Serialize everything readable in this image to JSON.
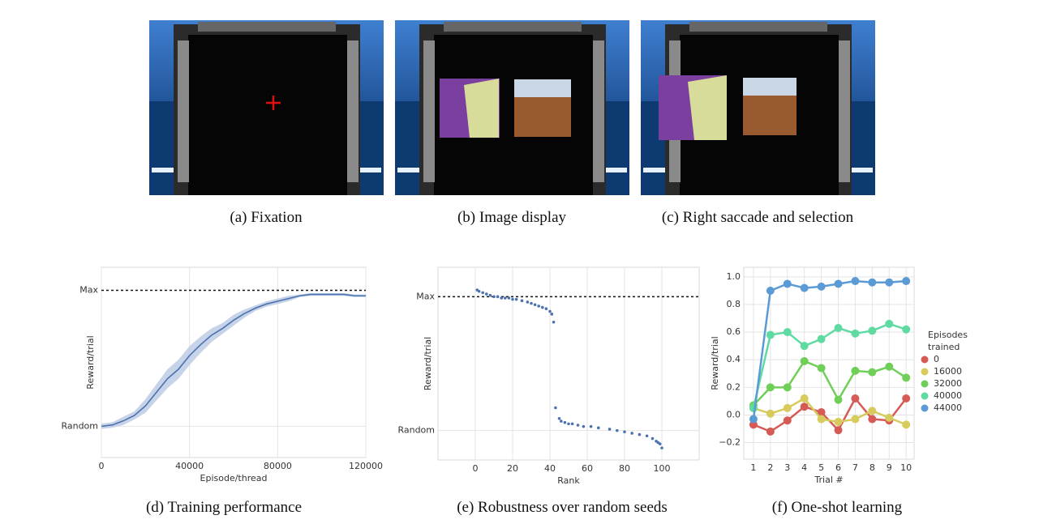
{
  "panels": [
    {
      "caption": "(a) Fixation"
    },
    {
      "caption": "(b) Image display"
    },
    {
      "caption": "(c) Right saccade and selection"
    }
  ],
  "chart_data": [
    {
      "type": "line",
      "caption": "(d) Training performance",
      "xlabel": "Episode/thread",
      "ylabel": "Reward/trial",
      "x": [
        0,
        5000,
        10000,
        15000,
        20000,
        25000,
        30000,
        35000,
        40000,
        45000,
        50000,
        55000,
        60000,
        65000,
        70000,
        75000,
        80000,
        85000,
        90000,
        95000,
        100000,
        105000,
        110000,
        115000,
        120000
      ],
      "series": [
        {
          "color": "#4c72b0",
          "values": [
            0.0,
            0.01,
            0.04,
            0.08,
            0.15,
            0.25,
            0.35,
            0.42,
            0.52,
            0.6,
            0.67,
            0.72,
            0.78,
            0.83,
            0.87,
            0.9,
            0.92,
            0.94,
            0.96,
            0.97,
            0.97,
            0.97,
            0.97,
            0.96,
            0.96
          ]
        }
      ],
      "band_low": [
        -0.02,
        -0.01,
        0.01,
        0.05,
        0.1,
        0.19,
        0.28,
        0.35,
        0.45,
        0.54,
        0.62,
        0.68,
        0.74,
        0.8,
        0.85,
        0.88,
        0.9,
        0.92,
        0.95,
        0.96,
        0.96,
        0.96,
        0.96,
        0.95,
        0.95
      ],
      "band_high": [
        0.02,
        0.03,
        0.07,
        0.11,
        0.2,
        0.31,
        0.42,
        0.49,
        0.59,
        0.66,
        0.72,
        0.76,
        0.82,
        0.86,
        0.89,
        0.92,
        0.94,
        0.96,
        0.97,
        0.98,
        0.98,
        0.98,
        0.98,
        0.97,
        0.97
      ],
      "band_color": "#b8c8e2",
      "xlim": [
        0,
        120000
      ],
      "xticks": [
        0,
        40000,
        80000,
        120000
      ],
      "ylim": [
        -0.23,
        1.17
      ],
      "yticks": [
        {
          "value": 0,
          "label": "Random"
        },
        {
          "value": 1,
          "label": "Max"
        }
      ],
      "grid": true,
      "dashed_top_tick": true
    },
    {
      "type": "scatter",
      "caption": "(e) Robustness over random seeds",
      "xlabel": "Rank",
      "ylabel": "Reward/trial",
      "color": "#4c72b0",
      "x": [
        1,
        2,
        4,
        6,
        8,
        10,
        12,
        14,
        16,
        18,
        20,
        22,
        25,
        28,
        30,
        32,
        34,
        36,
        38,
        40,
        41,
        42,
        43,
        45,
        46,
        48,
        50,
        52,
        55,
        58,
        62,
        66,
        72,
        76,
        80,
        84,
        88,
        92,
        95,
        97,
        98,
        99,
        100
      ],
      "values": [
        1.05,
        1.04,
        1.03,
        1.02,
        1.01,
        1.0,
        1.0,
        0.99,
        0.99,
        0.99,
        0.98,
        0.98,
        0.97,
        0.96,
        0.95,
        0.94,
        0.93,
        0.92,
        0.91,
        0.89,
        0.87,
        0.81,
        0.17,
        0.09,
        0.07,
        0.06,
        0.05,
        0.05,
        0.04,
        0.03,
        0.03,
        0.02,
        0.01,
        0.0,
        -0.01,
        -0.02,
        -0.03,
        -0.04,
        -0.06,
        -0.08,
        -0.09,
        -0.1,
        -0.13
      ],
      "xlim": [
        -20,
        120
      ],
      "xticks": [
        0,
        20,
        40,
        60,
        80,
        100
      ],
      "ylim": [
        -0.22,
        1.22
      ],
      "yticks": [
        {
          "value": 0,
          "label": "Random"
        },
        {
          "value": 1,
          "label": "Max"
        }
      ],
      "grid": true,
      "dashed_top_tick": true
    },
    {
      "type": "line",
      "caption": "(f) One-shot learning",
      "xlabel": "Trial #",
      "ylabel": "Reward/trial",
      "markers": true,
      "legend_title": "Episodes trained",
      "legend": "right",
      "x": [
        1,
        2,
        3,
        4,
        5,
        6,
        7,
        8,
        9,
        10
      ],
      "series": [
        {
          "name": "0",
          "color": "#d65a55",
          "values": [
            -0.07,
            -0.12,
            -0.04,
            0.06,
            0.02,
            -0.11,
            0.12,
            -0.03,
            -0.04,
            0.12
          ]
        },
        {
          "name": "16000",
          "color": "#d6cb5c",
          "values": [
            0.05,
            0.01,
            0.05,
            0.12,
            -0.03,
            -0.05,
            -0.03,
            0.03,
            -0.02,
            -0.07
          ]
        },
        {
          "name": "32000",
          "color": "#6fcf58",
          "values": [
            0.07,
            0.2,
            0.2,
            0.39,
            0.34,
            0.11,
            0.32,
            0.31,
            0.35,
            0.27
          ]
        },
        {
          "name": "40000",
          "color": "#5fdba2",
          "values": [
            0.05,
            0.58,
            0.6,
            0.5,
            0.55,
            0.63,
            0.59,
            0.61,
            0.66,
            0.62
          ]
        },
        {
          "name": "44000",
          "color": "#5b9bd5",
          "values": [
            -0.03,
            0.9,
            0.95,
            0.92,
            0.93,
            0.95,
            0.97,
            0.96,
            0.96,
            0.97
          ]
        }
      ],
      "xlim": [
        0.43,
        10.47
      ],
      "xticks": [
        1,
        2,
        3,
        4,
        5,
        6,
        7,
        8,
        9,
        10
      ],
      "ylim": [
        -0.32,
        1.07
      ],
      "yticks": [
        {
          "value": -0.2,
          "label": "−0.2"
        },
        {
          "value": 0,
          "label": "0.0"
        },
        {
          "value": 0.2,
          "label": "0.2"
        },
        {
          "value": 0.4,
          "label": "0.4"
        },
        {
          "value": 0.6,
          "label": "0.6"
        },
        {
          "value": 0.8,
          "label": "0.8"
        },
        {
          "value": 1,
          "label": "1.0"
        }
      ],
      "grid": true
    }
  ]
}
